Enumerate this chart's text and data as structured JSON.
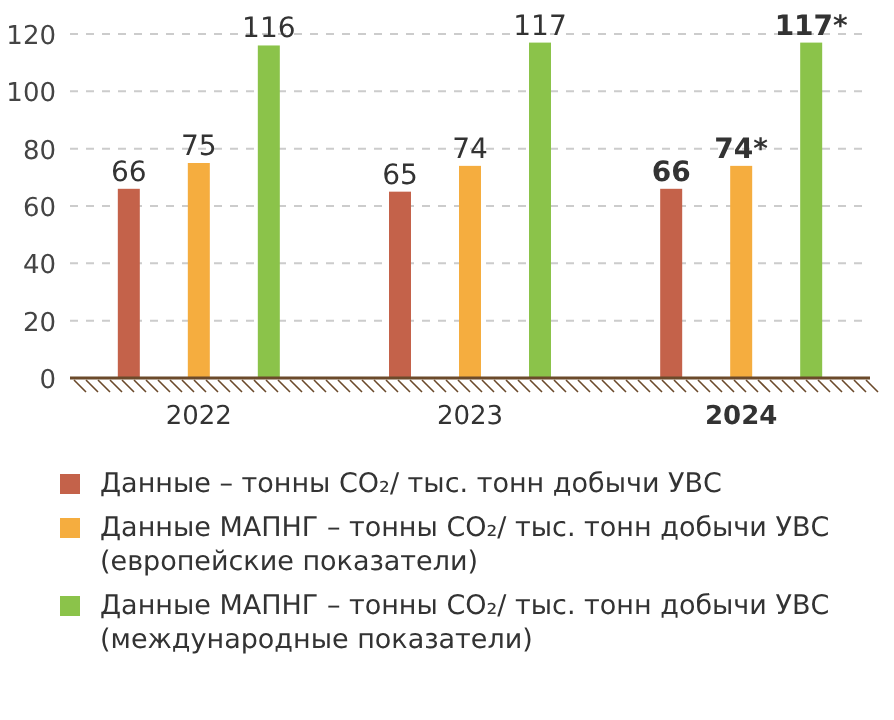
{
  "chart_data": {
    "type": "bar",
    "categories": [
      "2022",
      "2023",
      "2024"
    ],
    "ylim": [
      0,
      120
    ],
    "yticks": [
      0,
      20,
      40,
      60,
      80,
      100,
      120
    ],
    "grid": "y",
    "legend": "bottom",
    "series": [
      {
        "name": "Данные – тонны CO₂/ тыс. тонн добычи УВС",
        "color": "#c4624a",
        "values": [
          66,
          65,
          66
        ],
        "value_labels": [
          "66",
          "65",
          "66"
        ]
      },
      {
        "name": "Данные МАПНГ – тонны CO₂/ тыс. тонн добычи УВС (европейские показатели)",
        "color": "#f5ad3f",
        "values": [
          75,
          74,
          74
        ],
        "value_labels": [
          "75",
          "74",
          "74*"
        ]
      },
      {
        "name": "Данные МАПНГ – тонны CO₂/ тыс. тонн добычи УВС (международные показатели)",
        "color": "#8bc34a",
        "values": [
          116,
          117,
          117
        ],
        "value_labels": [
          "116",
          "117",
          "117*"
        ]
      }
    ]
  }
}
